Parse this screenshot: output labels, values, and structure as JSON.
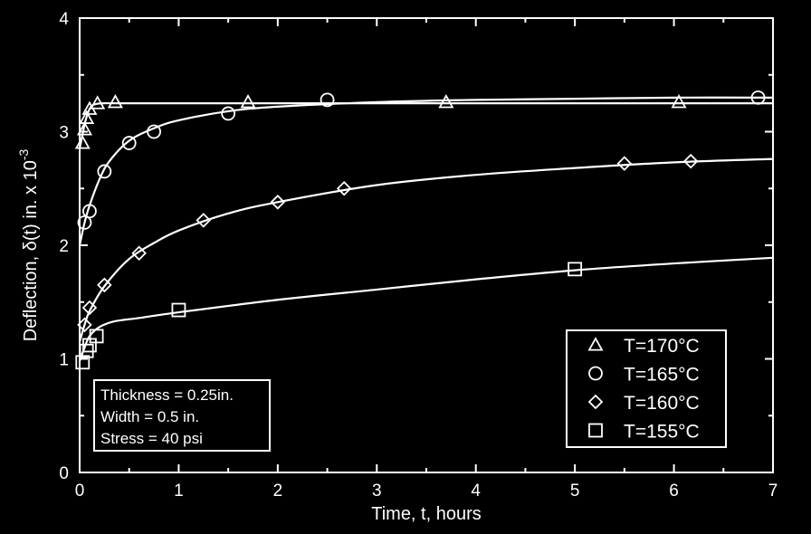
{
  "chart_data": {
    "type": "scatter",
    "title": "",
    "xlabel": "Time, t, hours",
    "ylabel": "Deflection, δ(t) in. x 10",
    "ylabel_exponent": "-3",
    "xlim": [
      0,
      7
    ],
    "ylim": [
      0,
      4
    ],
    "xticks": [
      0,
      1,
      2,
      3,
      4,
      5,
      6,
      7
    ],
    "yticks": [
      0,
      1,
      2,
      3,
      4
    ],
    "grid": false,
    "legend_position": "bottom-right",
    "series": [
      {
        "name": "T=170°C",
        "marker": "triangle",
        "points": [
          [
            0.03,
            2.9
          ],
          [
            0.05,
            3.02
          ],
          [
            0.07,
            3.12
          ],
          [
            0.1,
            3.2
          ],
          [
            0.18,
            3.25
          ],
          [
            0.36,
            3.26
          ],
          [
            1.7,
            3.26
          ],
          [
            3.7,
            3.26
          ],
          [
            6.05,
            3.26
          ]
        ],
        "fit": [
          [
            0,
            2.85
          ],
          [
            0.03,
            2.98
          ],
          [
            0.06,
            3.1
          ],
          [
            0.1,
            3.2
          ],
          [
            0.15,
            3.24
          ],
          [
            0.25,
            3.25
          ],
          [
            0.5,
            3.25
          ],
          [
            2,
            3.25
          ],
          [
            4,
            3.25
          ],
          [
            6,
            3.25
          ],
          [
            7,
            3.25
          ]
        ]
      },
      {
        "name": "T=165°C",
        "marker": "circle",
        "points": [
          [
            0.05,
            2.2
          ],
          [
            0.1,
            2.3
          ],
          [
            0.25,
            2.65
          ],
          [
            0.5,
            2.9
          ],
          [
            0.75,
            3.0
          ],
          [
            1.5,
            3.16
          ],
          [
            2.5,
            3.28
          ],
          [
            6.85,
            3.3
          ]
        ],
        "fit": [
          [
            0,
            2.0
          ],
          [
            0.05,
            2.2
          ],
          [
            0.1,
            2.35
          ],
          [
            0.2,
            2.58
          ],
          [
            0.3,
            2.74
          ],
          [
            0.5,
            2.92
          ],
          [
            0.75,
            3.03
          ],
          [
            1.0,
            3.1
          ],
          [
            1.5,
            3.18
          ],
          [
            2.0,
            3.22
          ],
          [
            3.0,
            3.26
          ],
          [
            4.0,
            3.28
          ],
          [
            5.0,
            3.29
          ],
          [
            6.0,
            3.3
          ],
          [
            7.0,
            3.3
          ]
        ]
      },
      {
        "name": "T=160°C",
        "marker": "diamond",
        "points": [
          [
            0.05,
            1.3
          ],
          [
            0.1,
            1.45
          ],
          [
            0.25,
            1.65
          ],
          [
            0.6,
            1.93
          ],
          [
            1.25,
            2.22
          ],
          [
            2.0,
            2.38
          ],
          [
            2.67,
            2.5
          ],
          [
            5.5,
            2.72
          ],
          [
            6.17,
            2.74
          ]
        ],
        "fit": [
          [
            0,
            1.15
          ],
          [
            0.05,
            1.3
          ],
          [
            0.1,
            1.42
          ],
          [
            0.25,
            1.64
          ],
          [
            0.5,
            1.88
          ],
          [
            0.75,
            2.02
          ],
          [
            1.0,
            2.13
          ],
          [
            1.5,
            2.28
          ],
          [
            2.0,
            2.38
          ],
          [
            3.0,
            2.53
          ],
          [
            4.0,
            2.62
          ],
          [
            5.0,
            2.68
          ],
          [
            6.0,
            2.73
          ],
          [
            7.0,
            2.76
          ]
        ]
      },
      {
        "name": "T=155°C",
        "marker": "square",
        "points": [
          [
            0.03,
            0.97
          ],
          [
            0.07,
            1.07
          ],
          [
            0.1,
            1.12
          ],
          [
            0.17,
            1.2
          ],
          [
            1.0,
            1.43
          ],
          [
            5.0,
            1.79
          ]
        ],
        "fit": [
          [
            0,
            0.98
          ],
          [
            0.05,
            1.1
          ],
          [
            0.1,
            1.2
          ],
          [
            0.2,
            1.28
          ],
          [
            0.35,
            1.33
          ],
          [
            0.6,
            1.36
          ],
          [
            1.0,
            1.41
          ],
          [
            2.0,
            1.52
          ],
          [
            3.0,
            1.61
          ],
          [
            4.0,
            1.7
          ],
          [
            5.0,
            1.78
          ],
          [
            6.0,
            1.84
          ],
          [
            7.0,
            1.89
          ]
        ]
      }
    ],
    "annotation": {
      "lines": [
        "Thickness = 0.25in.",
        "Width = 0.5 in.",
        "Stress = 40 psi"
      ]
    },
    "colors": {
      "background": "#000000",
      "foreground": "#ffffff"
    }
  }
}
